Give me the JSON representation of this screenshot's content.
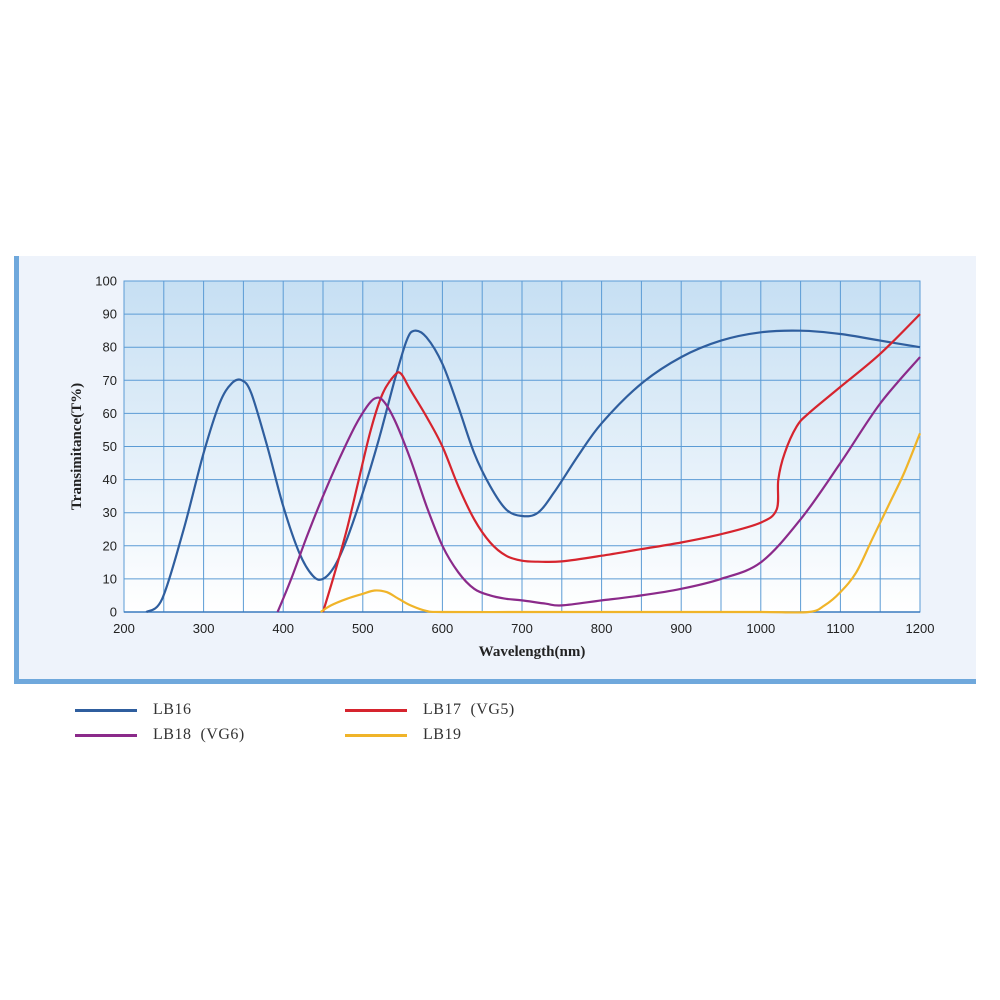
{
  "chart_data": {
    "type": "line",
    "xlabel": "Wavelength(nm)",
    "ylabel": "Transimitance(T%)",
    "xlim": [
      200,
      1200
    ],
    "ylim": [
      0,
      100
    ],
    "xticks": [
      200,
      300,
      400,
      500,
      600,
      700,
      800,
      900,
      1000,
      1100,
      1200
    ],
    "yticks": [
      0,
      10,
      20,
      30,
      40,
      50,
      60,
      70,
      80,
      90,
      100
    ],
    "grid": true,
    "legend_position": "bottom",
    "series": [
      {
        "name": "LB16",
        "color": "#2f5e9e",
        "points": [
          [
            228,
            0
          ],
          [
            248,
            4
          ],
          [
            275,
            25
          ],
          [
            300,
            48
          ],
          [
            320,
            63
          ],
          [
            335,
            69
          ],
          [
            348,
            70
          ],
          [
            360,
            66
          ],
          [
            380,
            50
          ],
          [
            400,
            32
          ],
          [
            420,
            18
          ],
          [
            437,
            11
          ],
          [
            450,
            10
          ],
          [
            465,
            14
          ],
          [
            480,
            22
          ],
          [
            500,
            36
          ],
          [
            520,
            52
          ],
          [
            540,
            70
          ],
          [
            555,
            82
          ],
          [
            565,
            85
          ],
          [
            580,
            83
          ],
          [
            600,
            75
          ],
          [
            620,
            62
          ],
          [
            640,
            48
          ],
          [
            660,
            38
          ],
          [
            680,
            31
          ],
          [
            700,
            29
          ],
          [
            720,
            30
          ],
          [
            740,
            36
          ],
          [
            770,
            47
          ],
          [
            800,
            57
          ],
          [
            850,
            69
          ],
          [
            900,
            77
          ],
          [
            950,
            82
          ],
          [
            1000,
            84.5
          ],
          [
            1050,
            85
          ],
          [
            1100,
            84
          ],
          [
            1150,
            82
          ],
          [
            1200,
            80
          ]
        ]
      },
      {
        "name": "LB17 (VG5)",
        "color": "#d6242e",
        "points": [
          [
            450,
            0
          ],
          [
            465,
            12
          ],
          [
            480,
            25
          ],
          [
            495,
            40
          ],
          [
            510,
            55
          ],
          [
            525,
            66
          ],
          [
            540,
            71.5
          ],
          [
            548,
            72
          ],
          [
            560,
            67
          ],
          [
            580,
            59
          ],
          [
            600,
            50
          ],
          [
            620,
            38
          ],
          [
            640,
            28
          ],
          [
            660,
            21
          ],
          [
            680,
            17
          ],
          [
            700,
            15.5
          ],
          [
            720,
            15.2
          ],
          [
            750,
            15.3
          ],
          [
            800,
            17
          ],
          [
            850,
            19
          ],
          [
            900,
            21
          ],
          [
            950,
            23.5
          ],
          [
            1000,
            27
          ],
          [
            1020,
            31
          ],
          [
            1022,
            40
          ],
          [
            1030,
            48
          ],
          [
            1045,
            56
          ],
          [
            1060,
            60
          ],
          [
            1100,
            68
          ],
          [
            1150,
            78
          ],
          [
            1200,
            90
          ]
        ]
      },
      {
        "name": "LB18 (VG6)",
        "color": "#8b2a8a",
        "points": [
          [
            393,
            0
          ],
          [
            410,
            10
          ],
          [
            430,
            23
          ],
          [
            450,
            35
          ],
          [
            470,
            46
          ],
          [
            490,
            56
          ],
          [
            505,
            62
          ],
          [
            515,
            64.5
          ],
          [
            525,
            64
          ],
          [
            540,
            58
          ],
          [
            560,
            46
          ],
          [
            580,
            32
          ],
          [
            600,
            20
          ],
          [
            620,
            12
          ],
          [
            640,
            7
          ],
          [
            660,
            5
          ],
          [
            680,
            4
          ],
          [
            700,
            3.5
          ],
          [
            730,
            2.5
          ],
          [
            750,
            2
          ],
          [
            800,
            3.5
          ],
          [
            850,
            5
          ],
          [
            900,
            7
          ],
          [
            950,
            10
          ],
          [
            1000,
            15
          ],
          [
            1050,
            28
          ],
          [
            1100,
            45
          ],
          [
            1150,
            63
          ],
          [
            1200,
            77
          ]
        ]
      },
      {
        "name": "LB19",
        "color": "#f0b429",
        "points": [
          [
            447,
            0
          ],
          [
            460,
            2
          ],
          [
            480,
            4
          ],
          [
            500,
            5.5
          ],
          [
            515,
            6.5
          ],
          [
            530,
            6
          ],
          [
            545,
            4
          ],
          [
            560,
            2
          ],
          [
            580,
            0.3
          ],
          [
            600,
            0
          ],
          [
            700,
            0
          ],
          [
            800,
            0
          ],
          [
            900,
            0
          ],
          [
            1000,
            0
          ],
          [
            1060,
            0
          ],
          [
            1080,
            2
          ],
          [
            1100,
            6
          ],
          [
            1120,
            12
          ],
          [
            1140,
            22
          ],
          [
            1160,
            32
          ],
          [
            1180,
            42
          ],
          [
            1200,
            54
          ]
        ]
      }
    ]
  }
}
